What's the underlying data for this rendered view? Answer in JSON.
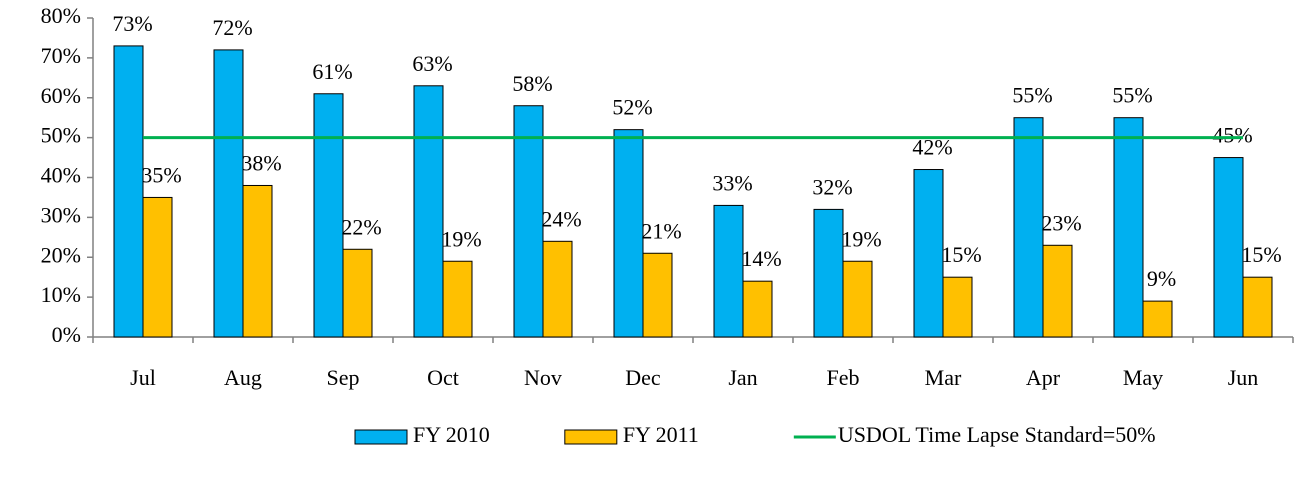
{
  "chart_data": {
    "type": "bar",
    "categories": [
      "Jul",
      "Aug",
      "Sep",
      "Oct",
      "Nov",
      "Dec",
      "Jan",
      "Feb",
      "Mar",
      "Apr",
      "May",
      "Jun"
    ],
    "series": [
      {
        "name": "FY 2010",
        "color": "#00b0f0",
        "values": [
          73,
          72,
          61,
          63,
          58,
          52,
          33,
          32,
          42,
          55,
          55,
          45
        ],
        "value_labels": [
          "73%",
          "72%",
          "61%",
          "63%",
          "58%",
          "52%",
          "33%",
          "32%",
          "42%",
          "55%",
          "55%",
          "45%"
        ]
      },
      {
        "name": "FY 2011",
        "color": "#ffc000",
        "values": [
          35,
          38,
          22,
          19,
          24,
          21,
          14,
          19,
          15,
          23,
          9,
          15
        ],
        "value_labels": [
          "35%",
          "38%",
          "22%",
          "19%",
          "24%",
          "21%",
          "14%",
          "19%",
          "15%",
          "23%",
          "9%",
          "15%"
        ]
      },
      {
        "name": "USDOL Time Lapse Standard=50%",
        "color": "#00b050",
        "type": "line",
        "values": [
          50,
          50,
          50,
          50,
          50,
          50,
          50,
          50,
          50,
          50,
          50,
          50
        ]
      }
    ],
    "ylim": [
      0,
      80
    ],
    "yticks": [
      {
        "value": 0,
        "label": "0%"
      },
      {
        "value": 10,
        "label": "10%"
      },
      {
        "value": 20,
        "label": "20%"
      },
      {
        "value": 30,
        "label": "30%"
      },
      {
        "value": 40,
        "label": "40%"
      },
      {
        "value": 50,
        "label": "50%"
      },
      {
        "value": 60,
        "label": "60%"
      },
      {
        "value": 70,
        "label": "70%"
      },
      {
        "value": 80,
        "label": "80%"
      }
    ],
    "grid": false,
    "legend": "bottom"
  }
}
